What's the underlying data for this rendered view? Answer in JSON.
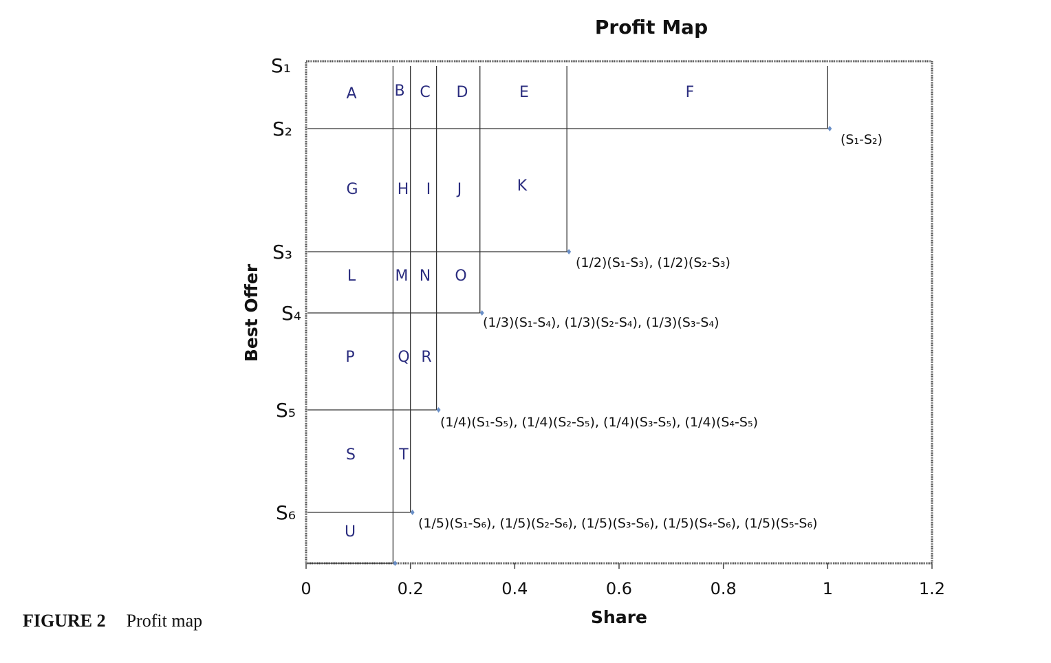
{
  "chart_data": {
    "type": "line",
    "title": "Profit Map",
    "xlabel": "Share",
    "ylabel": "Best Offer",
    "xlim": [
      0,
      1.2
    ],
    "x_ticks": [
      "0",
      "0.2",
      "0.4",
      "0.6",
      "0.8",
      "1",
      "1.2"
    ],
    "y_levels": [
      "S1",
      "S2",
      "S3",
      "S4",
      "S5",
      "S6"
    ],
    "y_level_labels": [
      "S₁",
      "S₂",
      "S₃",
      "S₄",
      "S₅",
      "S₆"
    ],
    "points": [
      {
        "share": 1,
        "level": "S2",
        "label": "(S₁-S₂)"
      },
      {
        "share": 0.5,
        "level": "S3",
        "label": "(1/2)(S₁-S₃), (1/2)(S₂-S₃)"
      },
      {
        "share": 0.3333,
        "level": "S4",
        "label": "(1/3)(S₁-S₄), (1/3)(S₂-S₄), (1/3)(S₃-S₄)"
      },
      {
        "share": 0.25,
        "level": "S5",
        "label": "(1/4)(S₁-S₅), (1/4)(S₂-S₅), (1/4)(S₃-S₅), (1/4)(S₄-S₅)"
      },
      {
        "share": 0.2,
        "level": "S6",
        "label": "(1/5)(S₁-S₆), (1/5)(S₂-S₆), (1/5)(S₃-S₆),  (1/5)(S₄-S₆), (1/5)(S₅-S₆)"
      },
      {
        "share": 0.1667,
        "level": "bottom",
        "label": ""
      }
    ],
    "regions": [
      "A",
      "B",
      "C",
      "D",
      "E",
      "F",
      "G",
      "H",
      "I",
      "J",
      "K",
      "L",
      "M",
      "N",
      "O",
      "P",
      "Q",
      "R",
      "S",
      "T",
      "U"
    ],
    "colors": {
      "region_text": "#2b2d7f",
      "point": "#6a8fc7",
      "line": "#333333"
    }
  },
  "caption": {
    "figure": "FIGURE 2",
    "text": "Profit map"
  }
}
